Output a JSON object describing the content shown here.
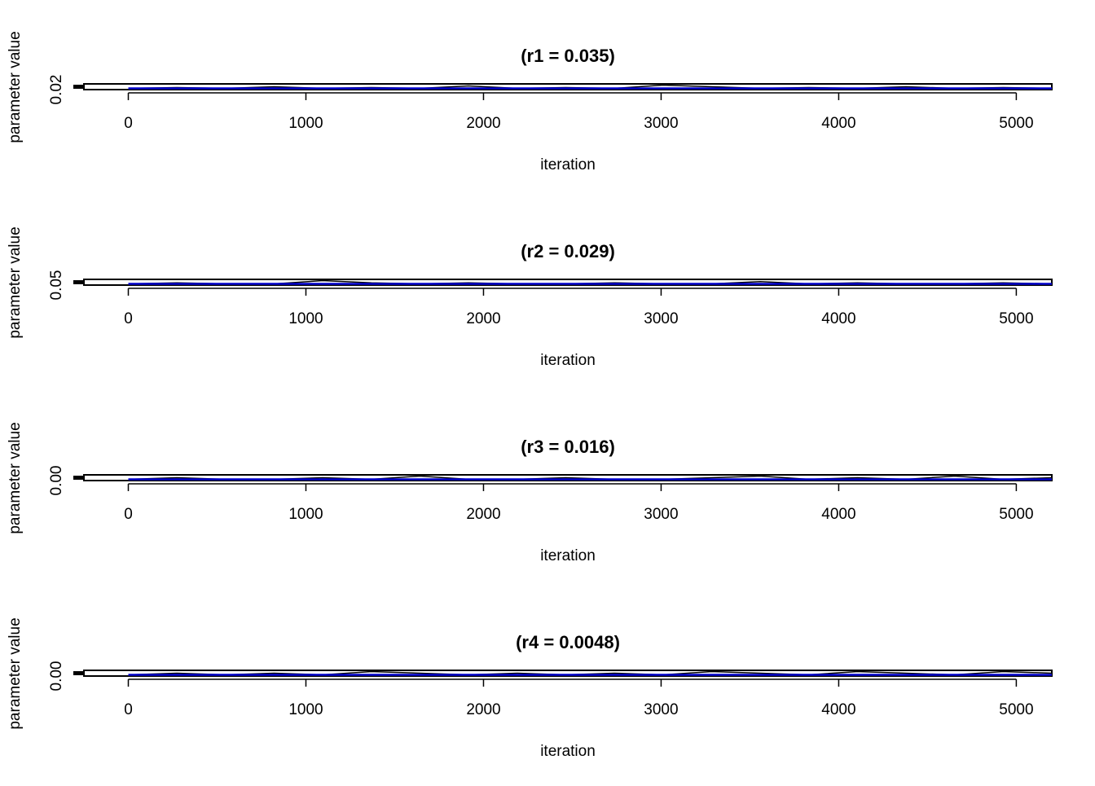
{
  "chart_data": [
    {
      "type": "line",
      "title": "(r1 = 0.035)",
      "xlabel": "iteration",
      "ylabel": "parameter value",
      "xlim": [
        -250,
        5200
      ],
      "x_ticks": [
        "0",
        "1000",
        "2000",
        "3000",
        "4000",
        "5000"
      ],
      "y_ticks": [
        "0.02"
      ],
      "series": [
        {
          "values": [
            0.02,
            0.021,
            0.02,
            0.022,
            0.02,
            0.021,
            0.02,
            0.023,
            0.02,
            0.021,
            0.02,
            0.024,
            0.022,
            0.02,
            0.021,
            0.02,
            0.022,
            0.02,
            0.021,
            0.02
          ]
        },
        {
          "color": "#0000cc",
          "values": [
            0.02,
            0.02
          ]
        }
      ],
      "grid": false,
      "colors": {
        "trace": "#000000",
        "mean": "#0000cc"
      }
    },
    {
      "type": "line",
      "title": "(r2 = 0.029)",
      "xlabel": "iteration",
      "ylabel": "parameter value",
      "xlim": [
        -250,
        5200
      ],
      "x_ticks": [
        "0",
        "1000",
        "2000",
        "3000",
        "4000",
        "5000"
      ],
      "y_ticks": [
        "0.05"
      ],
      "series": [
        {
          "values": [
            0.05,
            0.051,
            0.05,
            0.05,
            0.053,
            0.051,
            0.05,
            0.051,
            0.05,
            0.05,
            0.051,
            0.05,
            0.05,
            0.052,
            0.05,
            0.051,
            0.05,
            0.05,
            0.051,
            0.05
          ]
        },
        {
          "color": "#0000cc",
          "values": [
            0.05,
            0.05
          ]
        }
      ],
      "grid": false,
      "colors": {
        "trace": "#000000",
        "mean": "#0000cc"
      }
    },
    {
      "type": "line",
      "title": "(r3 = 0.016)",
      "xlabel": "iteration",
      "ylabel": "parameter value",
      "xlim": [
        -250,
        5200
      ],
      "x_ticks": [
        "0",
        "1000",
        "2000",
        "3000",
        "4000",
        "5000"
      ],
      "y_ticks": [
        "0.00"
      ],
      "series": [
        {
          "values": [
            0.0,
            0.001,
            0.0,
            0.0,
            0.001,
            0.0,
            0.002,
            0.0,
            0.0,
            0.001,
            0.0,
            0.0,
            0.001,
            0.002,
            0.0,
            0.001,
            0.0,
            0.002,
            0.0,
            0.001
          ]
        },
        {
          "color": "#0000cc",
          "values": [
            0.0,
            0.0
          ]
        }
      ],
      "grid": false,
      "colors": {
        "trace": "#000000",
        "mean": "#0000cc"
      }
    },
    {
      "type": "line",
      "title": "(r4 = 0.0048)",
      "xlabel": "iteration",
      "ylabel": "parameter value",
      "xlim": [
        -250,
        5200
      ],
      "x_ticks": [
        "0",
        "1000",
        "2000",
        "3000",
        "4000",
        "5000"
      ],
      "y_ticks": [
        "0.00"
      ],
      "series": [
        {
          "values": [
            0.0,
            0.001,
            0.0,
            0.001,
            0.0,
            0.002,
            0.001,
            0.0,
            0.001,
            0.0,
            0.001,
            0.0,
            0.002,
            0.001,
            0.0,
            0.002,
            0.001,
            0.0,
            0.002,
            0.001
          ]
        },
        {
          "color": "#0000cc",
          "values": [
            0.0,
            0.0
          ]
        }
      ],
      "grid": false,
      "colors": {
        "trace": "#000000",
        "mean": "#0000cc"
      }
    }
  ]
}
